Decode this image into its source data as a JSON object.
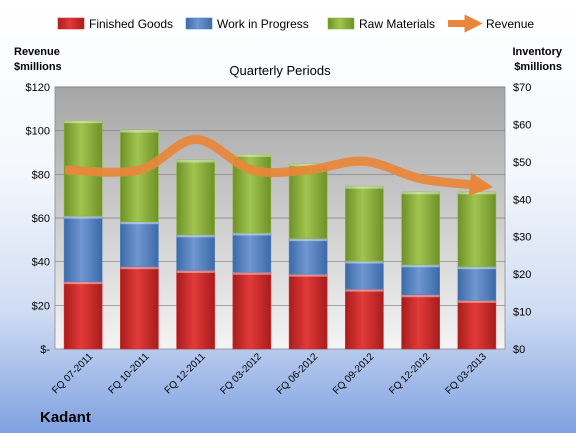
{
  "company": "Kadant",
  "chart_data": {
    "type": "bar",
    "stacked": true,
    "title": "Quarterly Periods",
    "categories": [
      "FQ 07-2011",
      "FQ 10-2011",
      "FQ 12-2011",
      "FQ 03-2012",
      "FQ 06-2012",
      "FQ 09-2012",
      "FQ 12-2012",
      "FQ 03-2013"
    ],
    "left_axis": {
      "label_line1": "Revenue",
      "label_line2": "$millions",
      "ylim": [
        0,
        120
      ],
      "ticks": [
        0,
        20,
        40,
        60,
        80,
        100,
        120
      ],
      "tick_labels": [
        "$-",
        "$20",
        "$40",
        "$60",
        "$80",
        "$100",
        "$120"
      ]
    },
    "right_axis": {
      "label_line1": "Inventory",
      "label_line2": "$millions",
      "ylim": [
        0,
        70
      ],
      "ticks": [
        0,
        10,
        20,
        30,
        40,
        50,
        60,
        70
      ],
      "tick_labels": [
        "$0",
        "$10",
        "$20",
        "$30",
        "$40",
        "$50",
        "$60",
        "$70"
      ]
    },
    "grid": true,
    "legend_position": "top",
    "series": [
      {
        "name": "Finished Goods",
        "type": "bar",
        "axis": "right",
        "color": "#d42b2b",
        "values": [
          18,
          22,
          21,
          20.5,
          20,
          16,
          14.5,
          13
        ]
      },
      {
        "name": "Work in Progress",
        "type": "bar",
        "axis": "right",
        "color": "#4f7fc0",
        "values": [
          17.5,
          12,
          9.5,
          10.5,
          9.5,
          7.5,
          8,
          9
        ]
      },
      {
        "name": "Raw Materials",
        "type": "bar",
        "axis": "right",
        "color": "#8db33a",
        "values": [
          25.5,
          24.5,
          20,
          21,
          20,
          20,
          19.5,
          20
        ]
      },
      {
        "name": "Revenue",
        "type": "line",
        "axis": "left",
        "color": "#e8873a",
        "values": [
          82,
          82,
          96,
          82,
          82,
          86,
          78,
          75
        ]
      }
    ]
  }
}
